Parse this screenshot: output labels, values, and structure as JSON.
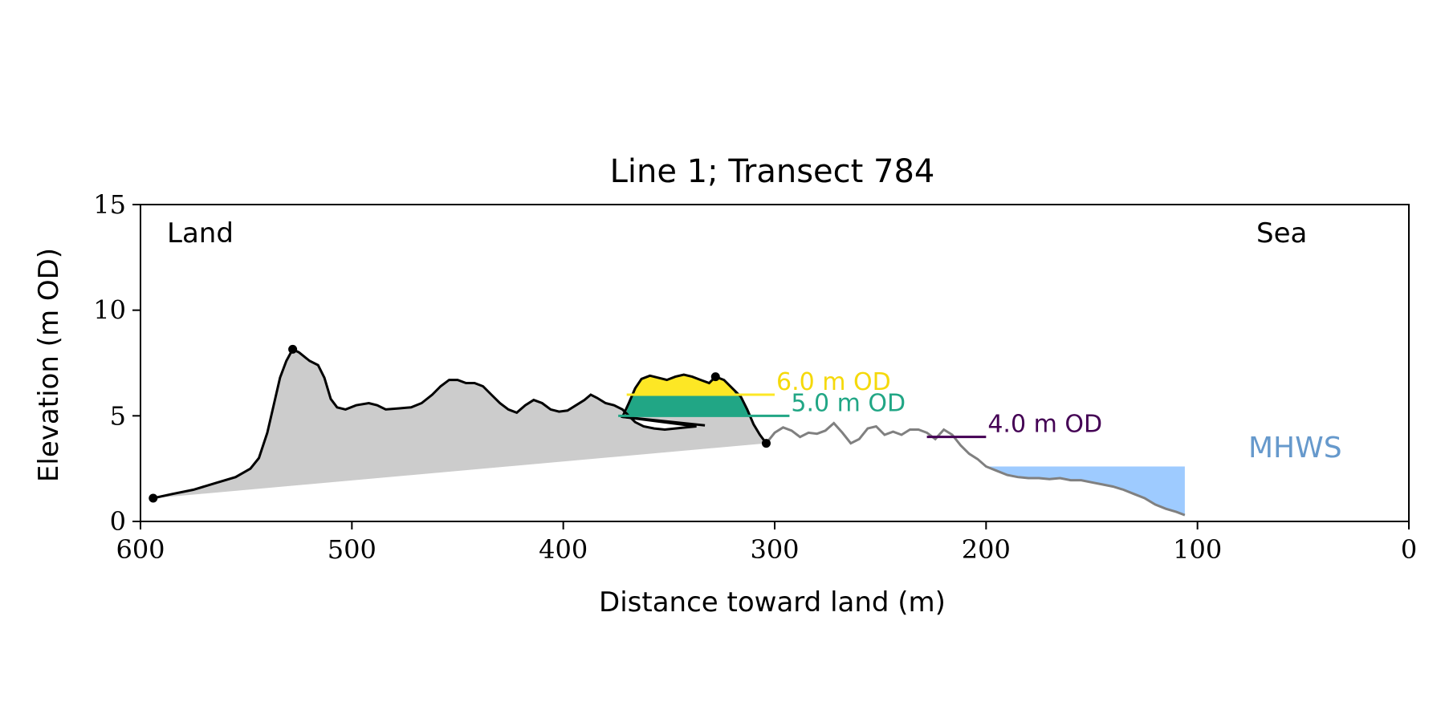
{
  "chart_data": {
    "type": "area",
    "title": "Line 1; Transect 784",
    "xlabel": "Distance toward land (m)",
    "ylabel": "Elevation (m OD)",
    "xlim": [
      600,
      0
    ],
    "ylim": [
      0,
      15
    ],
    "x_ticks": [
      600,
      500,
      400,
      300,
      200,
      100,
      0
    ],
    "y_ticks": [
      0,
      5,
      10,
      15
    ],
    "grid": false,
    "annotations": {
      "land": "Land",
      "sea": "Sea",
      "mhws": "MHWS"
    },
    "colors": {
      "profile_land": "#000000",
      "profile_sea": "#808080",
      "fill_area": "#cccccc",
      "band_6m": "#fde725",
      "band_5m": "#21a685",
      "band_4m": "#440154",
      "mhws_fill": "#9ecbff",
      "mhws_label": "#6699cc"
    },
    "contours": [
      {
        "label": "6.0 m OD",
        "level": 6.0,
        "color": "#fde725",
        "x_start": 370,
        "x_end": 300
      },
      {
        "label": "5.0 m OD",
        "level": 5.0,
        "color": "#21a685",
        "x_start": 374,
        "x_end": 293
      },
      {
        "label": "4.0 m OD",
        "level": 4.0,
        "color": "#440154",
        "x_start": 228,
        "x_end": 200
      }
    ],
    "mhws_level": 2.6,
    "mhws_x_end": 106,
    "markers": [
      {
        "x": 594,
        "y": 1.1
      },
      {
        "x": 528,
        "y": 8.15
      },
      {
        "x": 328,
        "y": 6.85
      },
      {
        "x": 304,
        "y": 3.7
      }
    ],
    "profile_land": [
      [
        594,
        1.1
      ],
      [
        585,
        1.3
      ],
      [
        575,
        1.5
      ],
      [
        565,
        1.8
      ],
      [
        555,
        2.1
      ],
      [
        548,
        2.5
      ],
      [
        544,
        3.0
      ],
      [
        540,
        4.2
      ],
      [
        537,
        5.5
      ],
      [
        534,
        6.8
      ],
      [
        531,
        7.6
      ],
      [
        528,
        8.15
      ],
      [
        525,
        8.0
      ],
      [
        520,
        7.6
      ],
      [
        516,
        7.4
      ],
      [
        513,
        6.8
      ],
      [
        510,
        5.8
      ],
      [
        507,
        5.4
      ],
      [
        503,
        5.3
      ],
      [
        498,
        5.5
      ],
      [
        492,
        5.6
      ],
      [
        488,
        5.5
      ],
      [
        484,
        5.3
      ],
      [
        478,
        5.35
      ],
      [
        472,
        5.4
      ],
      [
        467,
        5.6
      ],
      [
        462,
        6.0
      ],
      [
        458,
        6.4
      ],
      [
        454,
        6.7
      ],
      [
        450,
        6.7
      ],
      [
        446,
        6.55
      ],
      [
        442,
        6.55
      ],
      [
        438,
        6.4
      ],
      [
        434,
        6.0
      ],
      [
        430,
        5.6
      ],
      [
        426,
        5.3
      ],
      [
        422,
        5.15
      ],
      [
        418,
        5.5
      ],
      [
        414,
        5.75
      ],
      [
        410,
        5.6
      ],
      [
        406,
        5.3
      ],
      [
        402,
        5.2
      ],
      [
        398,
        5.25
      ],
      [
        394,
        5.5
      ],
      [
        390,
        5.75
      ],
      [
        387,
        6.0
      ],
      [
        384,
        5.85
      ],
      [
        380,
        5.6
      ],
      [
        376,
        5.5
      ],
      [
        372,
        5.3
      ],
      [
        369,
        5.0
      ],
      [
        366,
        4.7
      ],
      [
        362,
        4.5
      ],
      [
        357,
        4.4
      ],
      [
        352,
        4.35
      ],
      [
        347,
        4.4
      ],
      [
        342,
        4.45
      ],
      [
        337,
        4.5
      ],
      [
        333,
        4.55
      ],
      [
        372,
        4.95
      ],
      [
        369,
        5.6
      ],
      [
        366,
        6.3
      ],
      [
        363,
        6.75
      ],
      [
        359,
        6.9
      ],
      [
        355,
        6.8
      ],
      [
        351,
        6.7
      ],
      [
        347,
        6.85
      ],
      [
        343,
        6.95
      ],
      [
        339,
        6.85
      ],
      [
        335,
        6.7
      ],
      [
        331,
        6.55
      ],
      [
        328,
        6.85
      ],
      [
        324,
        6.7
      ],
      [
        320,
        6.3
      ],
      [
        316,
        5.9
      ],
      [
        313,
        5.3
      ],
      [
        310,
        4.6
      ],
      [
        307,
        4.1
      ],
      [
        304,
        3.7
      ]
    ],
    "profile_sea": [
      [
        304,
        3.7
      ],
      [
        300,
        4.2
      ],
      [
        296,
        4.45
      ],
      [
        292,
        4.3
      ],
      [
        288,
        4.0
      ],
      [
        284,
        4.2
      ],
      [
        280,
        4.15
      ],
      [
        276,
        4.3
      ],
      [
        272,
        4.65
      ],
      [
        268,
        4.2
      ],
      [
        264,
        3.7
      ],
      [
        260,
        3.9
      ],
      [
        256,
        4.4
      ],
      [
        252,
        4.5
      ],
      [
        248,
        4.1
      ],
      [
        244,
        4.25
      ],
      [
        240,
        4.1
      ],
      [
        236,
        4.35
      ],
      [
        232,
        4.35
      ],
      [
        228,
        4.2
      ],
      [
        224,
        3.9
      ],
      [
        220,
        4.35
      ],
      [
        216,
        4.1
      ],
      [
        212,
        3.6
      ],
      [
        208,
        3.2
      ],
      [
        204,
        2.95
      ],
      [
        200,
        2.6
      ],
      [
        195,
        2.4
      ],
      [
        190,
        2.2
      ],
      [
        185,
        2.1
      ],
      [
        180,
        2.05
      ],
      [
        175,
        2.05
      ],
      [
        170,
        2.0
      ],
      [
        165,
        2.05
      ],
      [
        160,
        1.95
      ],
      [
        155,
        1.95
      ],
      [
        150,
        1.85
      ],
      [
        145,
        1.75
      ],
      [
        140,
        1.65
      ],
      [
        135,
        1.5
      ],
      [
        130,
        1.3
      ],
      [
        125,
        1.1
      ],
      [
        120,
        0.8
      ],
      [
        115,
        0.6
      ],
      [
        110,
        0.45
      ],
      [
        106,
        0.3
      ]
    ]
  }
}
